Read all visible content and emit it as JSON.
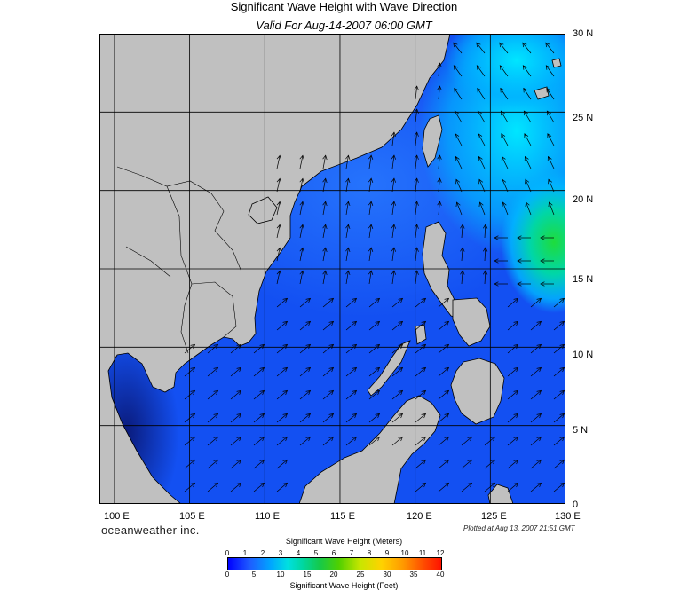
{
  "title": "Significant Wave Height with Wave Direction",
  "subtitle": "Valid For Aug-14-2007 06:00 GMT",
  "lon_labels": [
    "100 E",
    "105 E",
    "110 E",
    "115 E",
    "120 E",
    "125 E",
    "130 E"
  ],
  "lat_labels": [
    "30 N",
    "25 N",
    "20 N",
    "15 N",
    "10 N",
    "5 N",
    "0"
  ],
  "brand": "oceanweather inc.",
  "plotted": "Plotted at Aug 13, 2007 21:51 GMT",
  "colorbar": {
    "title_meters": "Significant Wave Height (Meters)",
    "title_feet": "Significant Wave Height (Feet)",
    "meters": [
      "0",
      "1",
      "2",
      "3",
      "4",
      "5",
      "6",
      "7",
      "8",
      "9",
      "10",
      "11",
      "12"
    ],
    "feet": [
      "0",
      "5",
      "10",
      "15",
      "20",
      "25",
      "30",
      "35",
      "40"
    ]
  },
  "colors": {
    "land": "#c0c0c0",
    "sea_dark": "#0a28e6",
    "sea_mid": "#1456ff",
    "sea_light": "#00bfff",
    "max": "#1edc3c"
  },
  "map_extent": {
    "lon": [
      99,
      130
    ],
    "lat": [
      0,
      30
    ]
  }
}
